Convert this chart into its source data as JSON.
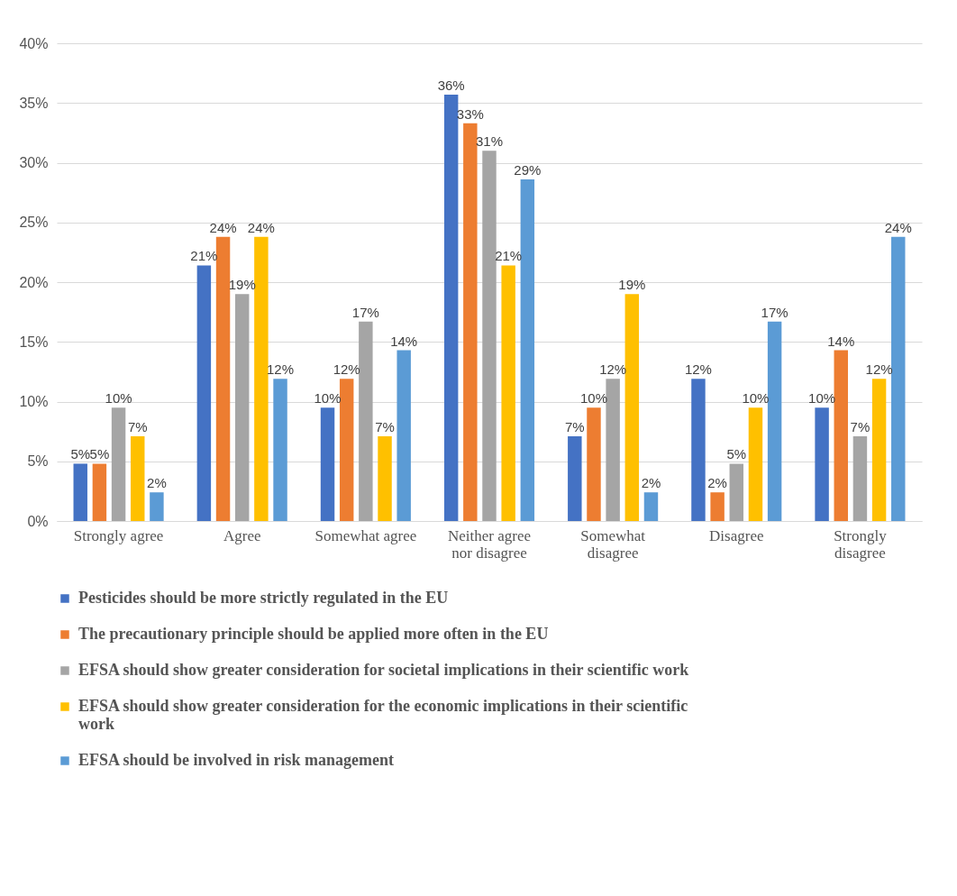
{
  "chart_data": {
    "type": "bar",
    "categories": [
      "Strongly agree",
      "Agree",
      "Somewhat agree",
      "Neither agree nor disagree",
      "Somewhat disagree",
      "Disagree",
      "Strongly disagree"
    ],
    "series": [
      {
        "name": "Pesticides should be more strictly regulated in the EU",
        "color": "#4472c4",
        "values": [
          4.8,
          21.4,
          9.5,
          35.7,
          7.1,
          11.9,
          9.5
        ],
        "value_labels": [
          "5%",
          "21%",
          "10%",
          "36%",
          "7%",
          "12%",
          "10%"
        ]
      },
      {
        "name": "The precautionary principle should be applied more often in the EU",
        "color": "#ed7d31",
        "values": [
          4.8,
          23.8,
          11.9,
          33.3,
          9.5,
          2.4,
          14.3
        ],
        "value_labels": [
          "5%",
          "24%",
          "12%",
          "33%",
          "10%",
          "2%",
          "14%"
        ]
      },
      {
        "name": "EFSA should show greater consideration for societal implications in their scientific work",
        "color": "#a5a5a5",
        "values": [
          9.5,
          19.0,
          16.7,
          31.0,
          11.9,
          4.8,
          7.1
        ],
        "value_labels": [
          "10%",
          "19%",
          "17%",
          "31%",
          "12%",
          "5%",
          "7%"
        ]
      },
      {
        "name": "EFSA should show greater consideration for the economic implications in their scientific work",
        "color": "#ffc000",
        "values": [
          7.1,
          23.8,
          7.1,
          21.4,
          19.0,
          9.5,
          11.9
        ],
        "value_labels": [
          "7%",
          "24%",
          "7%",
          "21%",
          "19%",
          "10%",
          "12%"
        ]
      },
      {
        "name": "EFSA should be involved in risk management",
        "color": "#5b9bd5",
        "values": [
          2.4,
          11.9,
          14.3,
          28.6,
          2.4,
          16.7,
          23.8
        ],
        "value_labels": [
          "2%",
          "12%",
          "14%",
          "29%",
          "2%",
          "17%",
          "24%"
        ]
      }
    ],
    "ylim": [
      0,
      40
    ],
    "yticks": [
      {
        "value": 0,
        "label": "0%"
      },
      {
        "value": 5,
        "label": "5%"
      },
      {
        "value": 10,
        "label": "10%"
      },
      {
        "value": 15,
        "label": "15%"
      },
      {
        "value": 20,
        "label": "20%"
      },
      {
        "value": 25,
        "label": "25%"
      },
      {
        "value": 30,
        "label": "30%"
      },
      {
        "value": 35,
        "label": "35%"
      },
      {
        "value": 40,
        "label": "40%"
      }
    ],
    "grid": "y",
    "legend": "bottom"
  }
}
